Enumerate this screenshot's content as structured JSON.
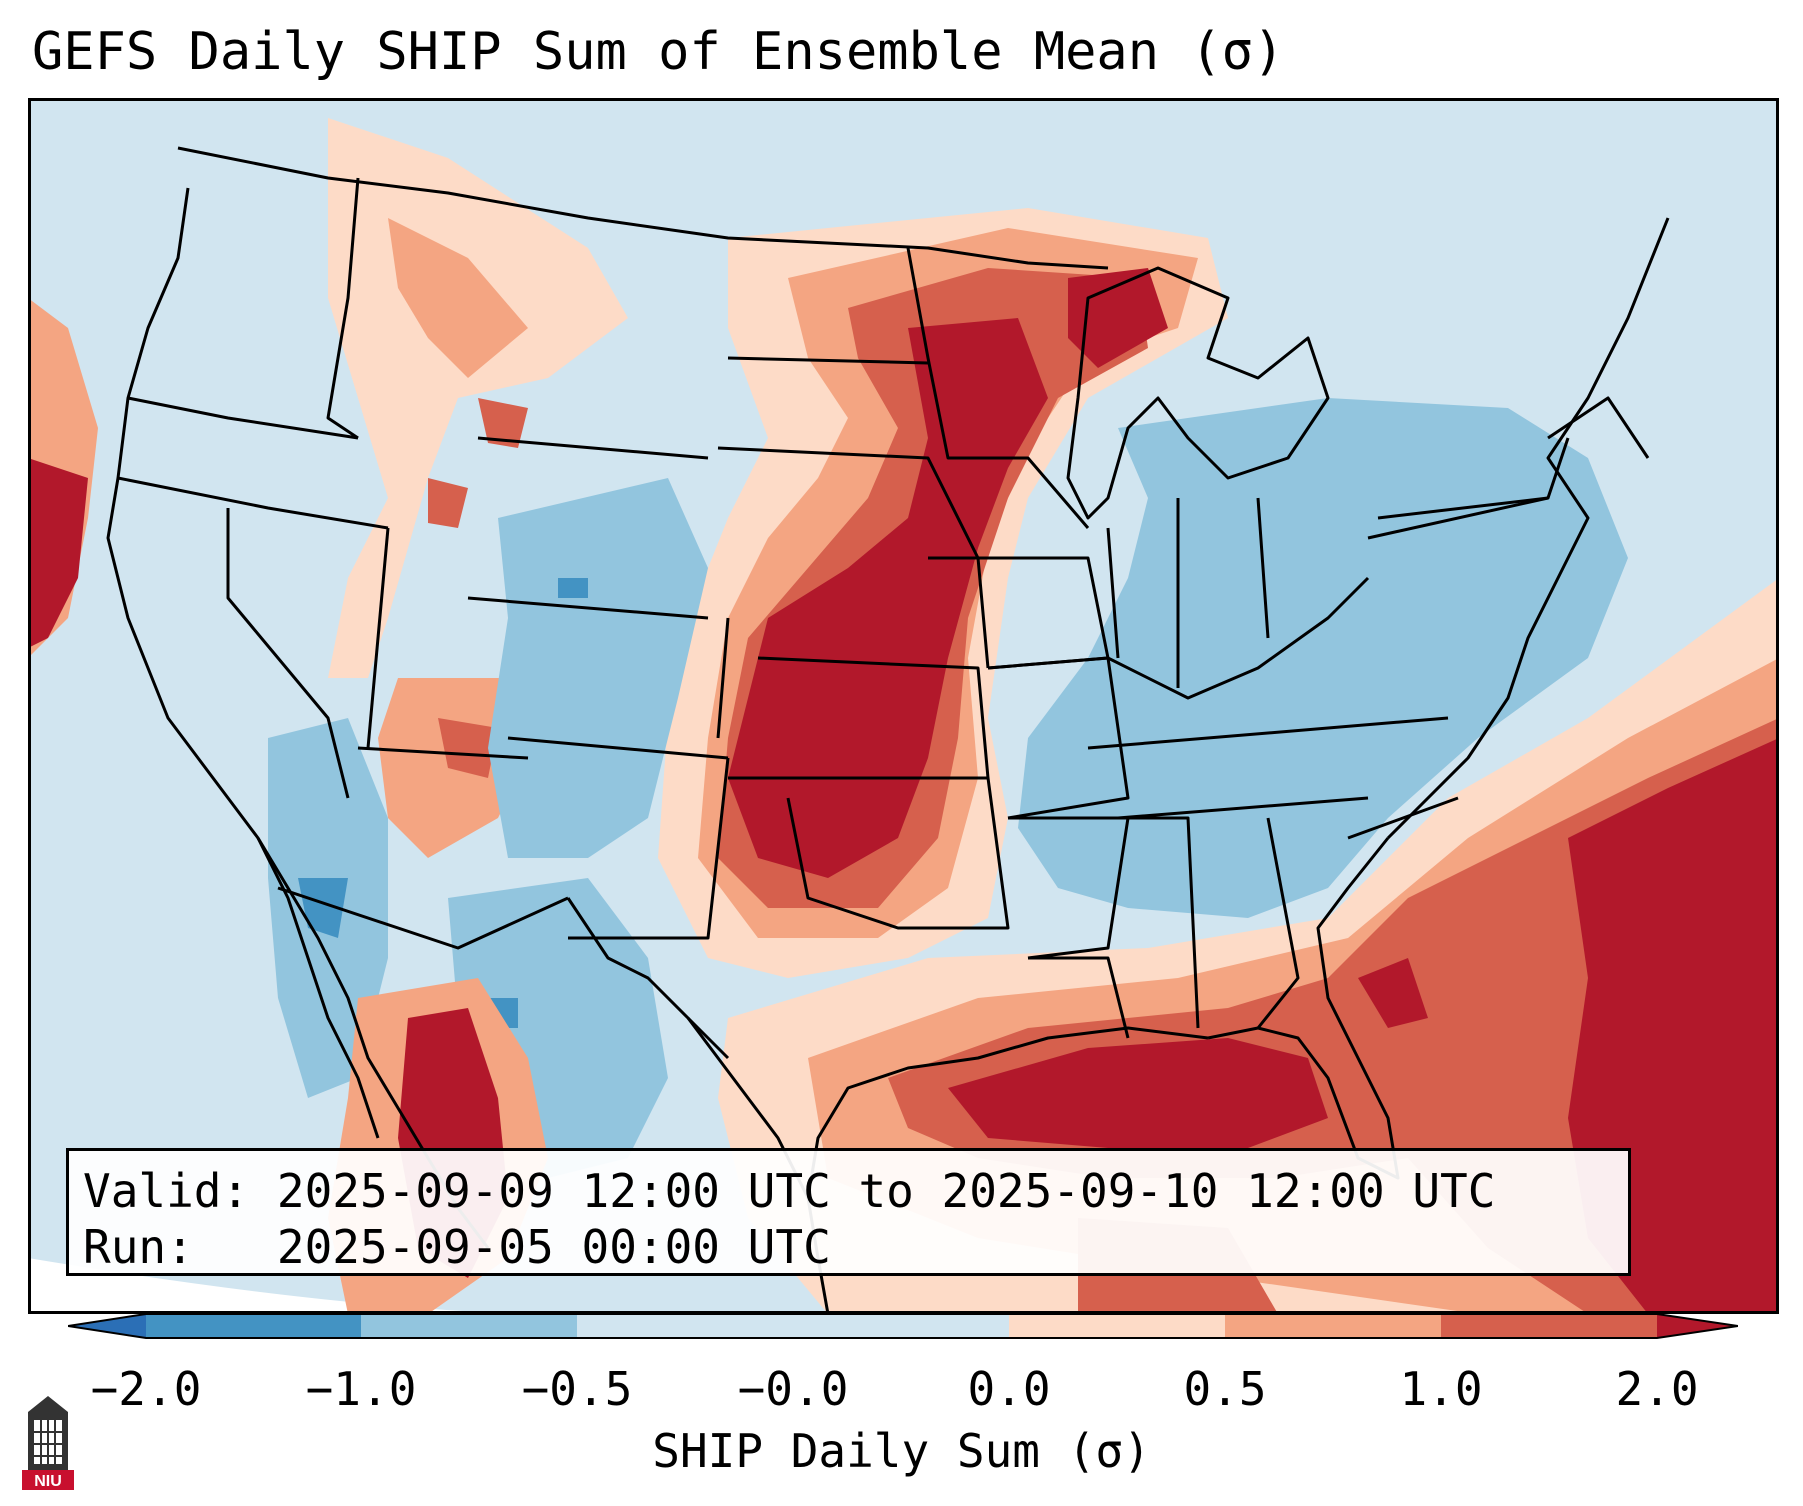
{
  "title": "GEFS Daily SHIP Sum of Ensemble Mean (σ)",
  "info": {
    "valid_label": "Valid:",
    "valid_value": "2025-09-09 12:00 UTC to 2025-09-10 12:00 UTC",
    "run_label": "Run:",
    "run_value": "2025-09-05 00:00 UTC"
  },
  "colorbar": {
    "label": "SHIP Daily Sum (σ)",
    "ticks": [
      "−2.0",
      "−1.0",
      "−0.5",
      "−0.0",
      "0.0",
      "0.5",
      "1.0",
      "2.0"
    ],
    "colors": {
      "extend_low": "#2b6fb6",
      "bin1": "#4393c3",
      "bin2": "#92c5de",
      "bin3": "#d1e5f0",
      "bin4": "#fddbc7",
      "bin5": "#f4a582",
      "bin6": "#d6604d",
      "extend_high": "#b2182b"
    }
  },
  "logo": {
    "text": "NIU"
  },
  "map": {
    "background_color": "#d1e5f0",
    "regions": [
      {
        "name": "Northern Plains Maximum",
        "category": ">1.0"
      },
      {
        "name": "Southern Plains Maximum",
        "category": ">1.0"
      },
      {
        "name": "Gulf of Mexico Maximum",
        "category": ">1.0"
      },
      {
        "name": "Western Atlantic Maximum",
        "category": ">1.0"
      },
      {
        "name": "Eastern US Negative Anomaly",
        "category": "-1.0 to -0.5"
      }
    ]
  }
}
